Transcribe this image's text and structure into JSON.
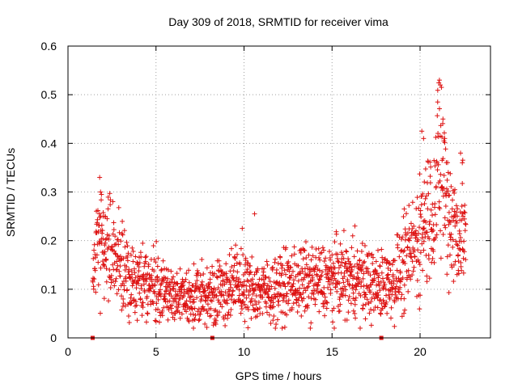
{
  "chart_data": {
    "type": "scatter",
    "title": "Day 309 of 2018, SRMTID for receiver vima",
    "xlabel": "GPS time / hours",
    "ylabel": "SRMTID / TECUs",
    "xlim": [
      0,
      24
    ],
    "ylim": [
      0,
      0.6
    ],
    "xticks": [
      0,
      5,
      10,
      15,
      20
    ],
    "xtick_labels": [
      "0",
      "5",
      "10",
      "15",
      "20"
    ],
    "yticks": [
      0,
      0.1,
      0.2,
      0.3,
      0.4,
      0.5,
      0.6
    ],
    "ytick_labels": [
      "0",
      "0.1",
      "0.2",
      "0.3",
      "0.4",
      "0.5",
      "0.6"
    ],
    "grid": true,
    "marker": "+",
    "color": "#dd1111",
    "series": [
      {
        "name": "SRMTID",
        "x_start": 1.4,
        "x_end": 22.6,
        "trend": [
          [
            1.4,
            0.12
          ],
          [
            1.8,
            0.2
          ],
          [
            2.2,
            0.19
          ],
          [
            2.8,
            0.16
          ],
          [
            3.5,
            0.12
          ],
          [
            4.5,
            0.11
          ],
          [
            5.5,
            0.095
          ],
          [
            6.5,
            0.08
          ],
          [
            7.5,
            0.085
          ],
          [
            8.5,
            0.095
          ],
          [
            9.5,
            0.11
          ],
          [
            10.5,
            0.1
          ],
          [
            11.5,
            0.095
          ],
          [
            12.5,
            0.11
          ],
          [
            13.5,
            0.115
          ],
          [
            14.5,
            0.115
          ],
          [
            15.5,
            0.125
          ],
          [
            16.5,
            0.12
          ],
          [
            17.5,
            0.105
          ],
          [
            18.5,
            0.12
          ],
          [
            19.2,
            0.15
          ],
          [
            19.8,
            0.2
          ],
          [
            20.3,
            0.25
          ],
          [
            20.8,
            0.28
          ],
          [
            21.2,
            0.36
          ],
          [
            21.6,
            0.26
          ],
          [
            22.0,
            0.22
          ],
          [
            22.6,
            0.22
          ]
        ],
        "highlights": [
          [
            1.8,
            0.33
          ],
          [
            1.85,
            0.3
          ],
          [
            1.9,
            0.295
          ],
          [
            2.0,
            0.25
          ],
          [
            2.1,
            0.25
          ],
          [
            9.9,
            0.225
          ],
          [
            10.6,
            0.255
          ],
          [
            16.3,
            0.23
          ],
          [
            19.1,
            0.265
          ],
          [
            20.1,
            0.425
          ],
          [
            20.2,
            0.41
          ],
          [
            21.0,
            0.485
          ],
          [
            21.1,
            0.53
          ],
          [
            21.15,
            0.52
          ],
          [
            21.3,
            0.45
          ],
          [
            21.4,
            0.41
          ],
          [
            21.6,
            0.34
          ],
          [
            22.3,
            0.38
          ],
          [
            22.4,
            0.36
          ]
        ]
      }
    ],
    "markers_on_axis": [
      1.4,
      8.2,
      17.8
    ]
  }
}
